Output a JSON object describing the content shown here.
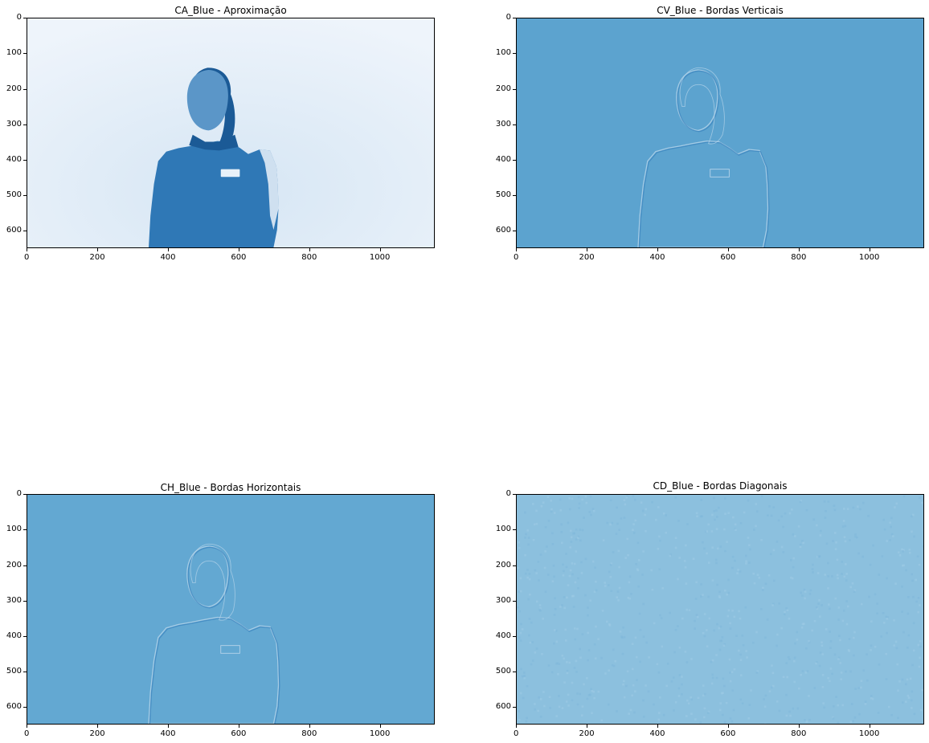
{
  "panels": [
    {
      "title": "CA_Blue - Aproximação",
      "kind": "approx"
    },
    {
      "title": "CV_Blue - Bordas Verticais",
      "kind": "vertical"
    },
    {
      "title": "CH_Blue - Bordas Horizontais",
      "kind": "horizontal"
    },
    {
      "title": "CD_Blue - Bordas Diagonais",
      "kind": "diagonal"
    }
  ],
  "axes": {
    "y_ticks": [
      "0",
      "100",
      "200",
      "300",
      "400",
      "500",
      "600"
    ],
    "x_ticks": [
      "0",
      "200",
      "400",
      "600",
      "800",
      "1000"
    ],
    "x_values": [
      0,
      200,
      400,
      600,
      800,
      1000
    ],
    "y_values": [
      0,
      100,
      200,
      300,
      400,
      500,
      600
    ],
    "x_max": 1156,
    "y_max": 650
  },
  "colors": {
    "approx_bg_light": "#eef4fb",
    "approx_bg_mid": "#d6e6f4",
    "subject": "#2f78b6",
    "subject_dark": "#1b5a96",
    "vertical_bg": "#5ca3cf",
    "horizontal_bg": "#63a8d2",
    "diagonal_bg": "#8cc0de",
    "edge_light": "#b7d4ea",
    "edge_dark": "#3b83bd"
  }
}
